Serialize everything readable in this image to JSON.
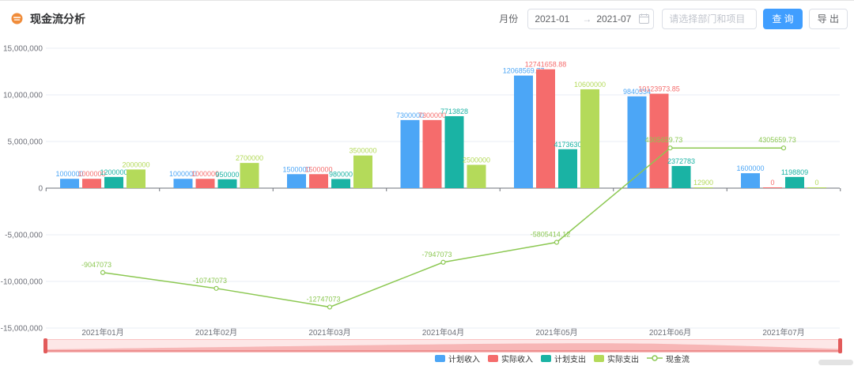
{
  "header": {
    "title": "现金流分析",
    "filters": {
      "month_label": "月份",
      "date_start": "2021-01",
      "range_separator": "→",
      "date_end": "2021-07",
      "project_placeholder": "请选择部门和项目",
      "query_button": "查 询",
      "export_button": "导 出"
    }
  },
  "chart_data": {
    "type": "bar",
    "subtype": "grouped-bars-with-line-overlay",
    "title": "现金流分析",
    "categories": [
      "2021年01月",
      "2021年02月",
      "2021年03月",
      "2021年04月",
      "2021年05月",
      "2021年06月",
      "2021年07月"
    ],
    "series": [
      {
        "name": "计划收入",
        "type": "bar",
        "color": "#4CA6F6",
        "values": [
          1000000,
          1000000,
          1500000,
          7300000,
          12068569.77,
          9840334,
          1600000
        ]
      },
      {
        "name": "实际收入",
        "type": "bar",
        "color": "#F56C6C",
        "values": [
          1000000,
          1000000,
          1500000,
          7300000,
          12741658.88,
          10123973.85,
          0
        ]
      },
      {
        "name": "计划支出",
        "type": "bar",
        "color": "#1AB3A4",
        "values": [
          1200000,
          950000,
          980000,
          7713828,
          4173630,
          2372783,
          1198809
        ]
      },
      {
        "name": "实际支出",
        "type": "bar",
        "color": "#B4DA5A",
        "values": [
          2000000,
          2700000,
          3500000,
          2500000,
          10600000,
          12900,
          0
        ]
      },
      {
        "name": "现金流",
        "type": "line",
        "color": "#8CC852",
        "values": [
          -9047073,
          -10747073,
          -12747073,
          -7947073,
          -5805414.12,
          4305659.73,
          4305659.73
        ]
      }
    ],
    "ylim": [
      -15000000,
      15000000
    ],
    "yticks": [
      15000000,
      10000000,
      5000000,
      0,
      -5000000,
      -10000000,
      -15000000
    ],
    "grid": true,
    "value_labels": true,
    "legend_position": "bottom",
    "has_datazoom_slider": true
  },
  "colors": {
    "accent": "#409EFF",
    "axis_label": "#6E7079",
    "grid_line": "#E9EDF4",
    "datazoom": "#F56C6C",
    "title_icon": "#F08C3A"
  },
  "icons": {
    "title_icon": "coin-icon",
    "calendar_icon": "calendar-icon",
    "range_arrow_icon": "arrow-right-icon"
  }
}
